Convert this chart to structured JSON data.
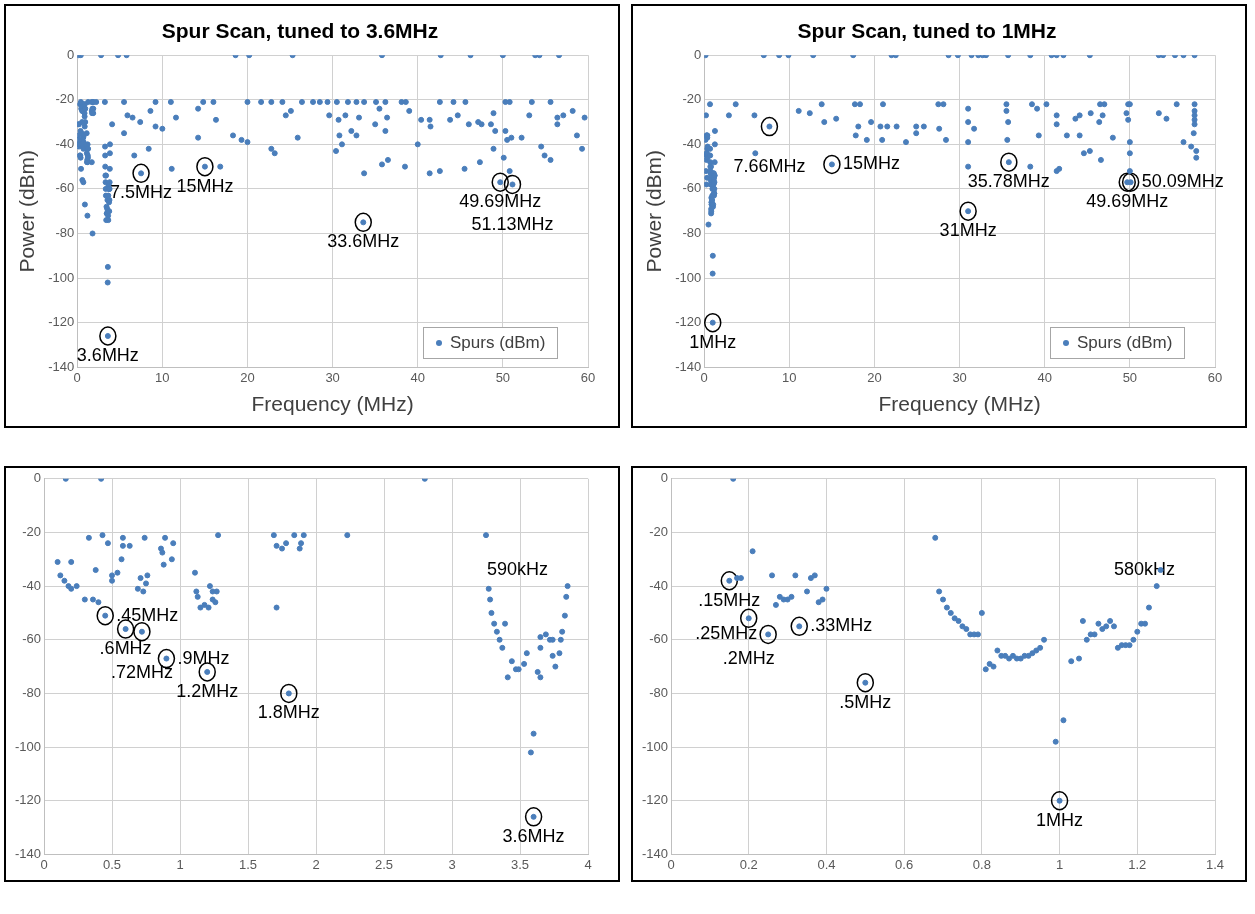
{
  "chart_data": [
    {
      "type": "scatter",
      "title": "Spur Scan, tuned to 3.6MHz",
      "xlabel": "Frequency (MHz)",
      "ylabel": "Power (dBm)",
      "xlim": [
        0,
        60
      ],
      "ylim": [
        -140,
        0
      ],
      "xticks": [
        0,
        10,
        20,
        30,
        40,
        50,
        60
      ],
      "yticks": [
        -140,
        -120,
        -100,
        -80,
        -60,
        -40,
        -20,
        0
      ],
      "grid": true,
      "legend": "bottom right",
      "marker": "circle",
      "series": [
        {
          "name": "Spurs (dBm)",
          "color": "#4a7ebb",
          "x": [
            4.8,
            5.8,
            18.6,
            20.2,
            25.3,
            35.8,
            42.7,
            46.2,
            50,
            53.8,
            54.3,
            56.6,
            5.5,
            9.2,
            11,
            14.8,
            16,
            20,
            21.6,
            22.8,
            24.1,
            26.4,
            27.7,
            28.5,
            29.4,
            30.5,
            31.8,
            32.8,
            33.7,
            35.1,
            36.2,
            38.1,
            38.6,
            42.6,
            44.2,
            45.6,
            50.3,
            50.8,
            53.4,
            55.6,
            5.9,
            6.5,
            7.4,
            8.6,
            9.2,
            10,
            11.6,
            5.5,
            4.1,
            14.2,
            14.2,
            16.3,
            18.3,
            19.3,
            20,
            22.8,
            23.2,
            24.5,
            25.1,
            25.9,
            29.6,
            30.7,
            31.5,
            30.8,
            31.1,
            30.4,
            32.2,
            32.8,
            33.1,
            35,
            35.5,
            36.2,
            36.4,
            39,
            40,
            40.4,
            41.4,
            41.5,
            43.8,
            44.7,
            46,
            47.1,
            47.5,
            48.6,
            48.9,
            49.1,
            48.9,
            50.3,
            50.5,
            51,
            52.2,
            53.1,
            54.5,
            54.9,
            55.6,
            56.4,
            56.4,
            57.1,
            58.2,
            58.7,
            59.3,
            59.6,
            36.5,
            35.8,
            38.5,
            33.7,
            41.4,
            42.6,
            45.5,
            47.3,
            50.1,
            50.8,
            49.69,
            51.13,
            8.4,
            6.7,
            7.5,
            11.1,
            15,
            16.8,
            33.6,
            0.16,
            0.42,
            2.8,
            0.33,
            0.43,
            0.47,
            0.58,
            0.63,
            0.57,
            0.74,
            0.89,
            0.86,
            0.87,
            0.95,
            0.94,
            0.88,
            1.28,
            0.1,
            0.2,
            0.38,
            0.12,
            0.15,
            0.18,
            0.2,
            0.24,
            0.3,
            0.36,
            0.4,
            0.45,
            0.5,
            0.54,
            0.6,
            0.72,
            0.69,
            0.73,
            0.71,
            0.76,
            0.75,
            0.9,
            1.11,
            1.12,
            1.13,
            1.15,
            1.18,
            1.21,
            1.22,
            1.24,
            1.27,
            1.24,
            1.26,
            1.2,
            1.69,
            1.71,
            1.75,
            1.78,
            1.84,
            1.91,
            1.89,
            1.88,
            1.71,
            1.8,
            2.23,
            3.25,
            3.27,
            3.28,
            3.29,
            3.31,
            3.33,
            3.35,
            3.37,
            3.39,
            3.44,
            3.41,
            3.47,
            3.49,
            3.53,
            3.55,
            3.63,
            3.65,
            3.65,
            3.65,
            3.69,
            3.72,
            3.74,
            3.74,
            3.76,
            3.79,
            3.8,
            3.81,
            3.83,
            3.84,
            3.85,
            3.6,
            3.58,
            3.6
          ],
          "values": [
            0,
            0,
            0,
            0,
            0,
            0,
            0,
            0,
            0,
            0,
            0,
            0,
            -21,
            -21,
            -21,
            -21,
            -21,
            -21,
            -21,
            -21,
            -21,
            -21,
            -21,
            -21,
            -21,
            -21,
            -21,
            -21,
            -21,
            -21,
            -21,
            -21,
            -21,
            -21,
            -21,
            -21,
            -21,
            -21,
            -21,
            -21,
            -27,
            -28,
            -30,
            -25,
            -32,
            -33,
            -28,
            -35,
            -31,
            -24,
            -37,
            -29,
            -36,
            -38,
            -39,
            -42,
            -44,
            -27,
            -25,
            -37,
            -27,
            -29,
            -27,
            -36,
            -40,
            -43,
            -34,
            -36,
            -28,
            -31,
            -24,
            -34,
            -28,
            -25,
            -40,
            -29,
            -29,
            -32,
            -29,
            -27,
            -31,
            -30,
            -31,
            -31,
            -26,
            -34,
            -42,
            -34,
            -38,
            -37,
            -37,
            -27,
            -41,
            -45,
            -47,
            -28,
            -31,
            -27,
            -25,
            -36,
            -42,
            -28,
            -47,
            -49,
            -50,
            -53,
            -53,
            -52,
            -51,
            -48,
            -46,
            -52,
            -57,
            -58,
            -42,
            -45,
            -53,
            -51,
            -50,
            -50,
            -75,
            0,
            0,
            0,
            -22,
            -21,
            -24,
            -25,
            -25,
            -30,
            -22,
            -22,
            -26,
            -27.5,
            -24,
            -30,
            -32,
            -21,
            -31,
            -31,
            -34,
            -36,
            -38,
            -40,
            -41,
            -40,
            -45,
            -45,
            -46,
            -51,
            -38,
            -35,
            -56,
            -57,
            -41,
            -42,
            -37,
            -36,
            -39,
            -67,
            -35,
            -42,
            -44,
            -48,
            -47,
            -48,
            -40,
            -42,
            -42,
            -45,
            -46,
            -72,
            -21,
            -25,
            -26,
            -24,
            -21,
            -21,
            -24,
            -26,
            -48,
            -80,
            -21,
            -21,
            -41,
            -45,
            -50,
            -54,
            -57,
            -60,
            -63,
            -54,
            -68,
            -74,
            -71,
            -71,
            -69,
            -65,
            -72,
            -74,
            -63,
            -59,
            -58,
            -60,
            -60,
            -66,
            -70,
            -65,
            -60,
            -57,
            -51,
            -44,
            -40,
            -95,
            -102,
            -126
          ]
        }
      ],
      "annotations": [
        {
          "text": "7.5MHz",
          "x": 7.5,
          "y": -53
        },
        {
          "text": "15MHz",
          "x": 15,
          "y": -50
        },
        {
          "text": "33.6MHz",
          "x": 33.6,
          "y": -75
        },
        {
          "text": "49.69MHz",
          "x": 49.69,
          "y": -57
        },
        {
          "text": "51.13MHz",
          "x": 51.13,
          "y": -58
        },
        {
          "text": "3.6MHz",
          "x": 3.6,
          "y": -126
        }
      ]
    },
    {
      "type": "scatter",
      "title": "Spur Scan, tuned to 1MHz",
      "xlabel": "Frequency (MHz)",
      "ylabel": "Power (dBm)",
      "xlim": [
        0,
        60
      ],
      "ylim": [
        -140,
        0
      ],
      "xticks": [
        0,
        10,
        20,
        30,
        40,
        50,
        60
      ],
      "yticks": [
        -140,
        -120,
        -100,
        -80,
        -60,
        -40,
        -20,
        0
      ],
      "grid": true,
      "legend": "bottom right",
      "marker": "circle",
      "series": [
        {
          "name": "Spurs (dBm)",
          "color": "#4a7ebb",
          "x": [
            7,
            8.8,
            9.9,
            12.8,
            17.5,
            22,
            22.5,
            28.7,
            29.8,
            31.4,
            32.2,
            32.7,
            33.1,
            35.7,
            38.3,
            40.8,
            41.4,
            42.2,
            45.3,
            53.4,
            53.9,
            55.3,
            56.3,
            57.6,
            3.7,
            13.8,
            17.7,
            18.3,
            21,
            27.5,
            28.1,
            35.5,
            38.5,
            40.2,
            46.5,
            47,
            49.8,
            50,
            55.5,
            57.6,
            2.9,
            5.9,
            7.66,
            11.1,
            12.4,
            14.1,
            15.5,
            17.8,
            18.1,
            19.1,
            19.6,
            20.7,
            21.5,
            20.9,
            22.6,
            23.7,
            24.9,
            24.9,
            25.8,
            27.6,
            28.4,
            31,
            31,
            31.7,
            31,
            35.5,
            35.7,
            35.6,
            39.1,
            39.3,
            41.4,
            41.4,
            42.6,
            43.6,
            44.1,
            44.1,
            45.4,
            46.4,
            46.8,
            48,
            44.6,
            45.3,
            46.6,
            49.6,
            49.8,
            50,
            50,
            50,
            53.4,
            54.3,
            56.3,
            57.2,
            57.5,
            57.8,
            57.8,
            31,
            35.78,
            38.3,
            41.4,
            41.7,
            31,
            15,
            6,
            49.69,
            50.09,
            57.6,
            57.6,
            57.6,
            57.6,
            0.16,
            0.68,
            0.21,
            0.15,
            0.2,
            0.25,
            0.26,
            0.27,
            0.28,
            0.29,
            0.3,
            0.31,
            0.32,
            0.33,
            0.35,
            0.36,
            0.37,
            0.38,
            0.4,
            0.5,
            0.69,
            0.7,
            0.71,
            0.72,
            0.73,
            0.74,
            0.75,
            0.76,
            0.77,
            0.78,
            0.79,
            0.8,
            0.81,
            0.82,
            0.83,
            0.84,
            0.85,
            0.87,
            0.88,
            0.89,
            0.9,
            0.93,
            0.95,
            0.96,
            0.99,
            1,
            1.01,
            1.03,
            1.05,
            1.06,
            1.08,
            1.09,
            1.11,
            1.12,
            1.13,
            1.14,
            1.15,
            1.16,
            1.17,
            1.18,
            1.19,
            1.2,
            1.21,
            1.22,
            1.23,
            1.25,
            1.26
          ],
          "values": [
            0,
            0,
            0,
            0,
            0,
            0,
            0,
            0,
            0,
            0,
            0,
            0,
            0,
            0,
            0,
            0,
            0,
            0,
            0,
            0,
            0,
            0,
            0,
            0,
            -22,
            -22,
            -22,
            -22,
            -22,
            -22,
            -22,
            -22,
            -22,
            -22,
            -22,
            -22,
            -22,
            -22,
            -22,
            -22,
            -27,
            -27,
            -32,
            -25,
            -26,
            -30,
            -28.5,
            -36,
            -32,
            -38,
            -30,
            -32,
            -32,
            -38,
            -32,
            -39,
            -32,
            -35,
            -32,
            -33,
            -38,
            -24,
            -30,
            -33,
            -39,
            -25,
            -30,
            -38,
            -24,
            -36,
            -27,
            -31,
            -36,
            -28.5,
            -27,
            -36,
            -26,
            -30,
            -27,
            -37,
            -44,
            -43,
            -47,
            -26,
            -29,
            -39,
            -44,
            -52,
            -26,
            -28.5,
            -39,
            -41,
            -35,
            -43,
            -46,
            -50,
            -48,
            -50,
            -52,
            -51,
            -70,
            -49,
            -44,
            -57,
            -57,
            -25,
            -27,
            -29,
            -31,
            0,
            -22,
            -27,
            -38,
            -52,
            -58,
            -36,
            -47,
            -44,
            -45,
            -45,
            -44,
            -36,
            -55,
            -42,
            -37,
            -36,
            -46,
            -41,
            -76,
            -42,
            -45,
            -48,
            -50,
            -52,
            -53,
            -55,
            -56,
            -58,
            -58,
            -58,
            -50,
            -71,
            -69,
            -70,
            -64,
            -66,
            -67,
            -66,
            -67,
            -67,
            -65,
            -63,
            -60,
            -98,
            -120,
            -90,
            -68,
            -67,
            -53,
            -58,
            -58,
            -56,
            -55,
            -53,
            -55,
            -63,
            -62,
            -62,
            -62,
            -60,
            -57,
            -54,
            -54,
            -48,
            -40,
            -34
          ]
        }
      ],
      "annotations": [
        {
          "text": "7.66MHz",
          "x": 7.66,
          "y": -32
        },
        {
          "text": "15MHz",
          "x": 15,
          "y": -49
        },
        {
          "text": "35.78MHz",
          "x": 35.78,
          "y": -48
        },
        {
          "text": "31MHz",
          "x": 31,
          "y": -70
        },
        {
          "text": "49.69MHz",
          "x": 49.69,
          "y": -57
        },
        {
          "text": "50.09MHz",
          "x": 50.09,
          "y": -57
        },
        {
          "text": "1MHz",
          "x": 1,
          "y": -120
        }
      ]
    },
    {
      "type": "scatter",
      "xlim": [
        0,
        4
      ],
      "ylim": [
        -140,
        0
      ],
      "xticks": [
        0,
        0.5,
        1,
        1.5,
        2,
        2.5,
        3,
        3.5,
        4
      ],
      "yticks": [
        -140,
        -120,
        -100,
        -80,
        -60,
        -40,
        -20,
        0
      ],
      "grid": true,
      "marker": "circle",
      "series": [
        {
          "color": "#4a7ebb",
          "x": [
            0.16,
            0.42,
            2.8,
            0.33,
            0.43,
            0.47,
            0.58,
            0.58,
            0.63,
            0.57,
            0.74,
            0.89,
            0.86,
            0.87,
            0.95,
            0.94,
            0.88,
            1.28,
            0.1,
            0.2,
            0.38,
            0.12,
            0.15,
            0.18,
            0.2,
            0.24,
            0.3,
            0.36,
            0.4,
            0.45,
            0.5,
            0.5,
            0.54,
            0.6,
            0.72,
            0.69,
            0.73,
            0.71,
            0.76,
            0.75,
            0.9,
            1.11,
            1.12,
            1.13,
            1.15,
            1.18,
            1.21,
            1.22,
            1.24,
            1.27,
            1.24,
            1.26,
            1.2,
            1.69,
            1.71,
            1.75,
            1.78,
            1.84,
            1.91,
            1.89,
            1.88,
            1.71,
            1.8,
            2.23,
            3.25,
            3.27,
            3.28,
            3.29,
            3.31,
            3.33,
            3.35,
            3.37,
            3.39,
            3.44,
            3.41,
            3.47,
            3.49,
            3.53,
            3.55,
            3.63,
            3.65,
            3.65,
            3.65,
            3.69,
            3.72,
            3.74,
            3.74,
            3.76,
            3.79,
            3.8,
            3.81,
            3.83,
            3.84,
            3.85,
            3.6,
            3.58,
            3.6
          ],
          "values": [
            0,
            0,
            0,
            -22,
            -21,
            -24,
            -22,
            -25,
            -25,
            -30,
            -22,
            -22,
            -26,
            -27.5,
            -24,
            -30,
            -32,
            -21,
            -31,
            -31,
            -34,
            -36,
            -38,
            -40,
            -41,
            -40,
            -45,
            -45,
            -46,
            -51,
            -38,
            -36,
            -35,
            -56,
            -57,
            -41,
            -42,
            -37,
            -36,
            -39,
            -67,
            -35,
            -42,
            -44,
            -48,
            -47,
            -48,
            -40,
            -42,
            -42,
            -45,
            -46,
            -72,
            -21,
            -25,
            -26,
            -24,
            -21,
            -21,
            -24,
            -26,
            -48,
            -80,
            -21,
            -21,
            -41,
            -45,
            -50,
            -54,
            -57,
            -60,
            -63,
            -54,
            -68,
            -74,
            -71,
            -71,
            -69,
            -65,
            -72,
            -74,
            -63,
            -59,
            -58,
            -60,
            -60,
            -66,
            -70,
            -65,
            -60,
            -57,
            -51,
            -44,
            -40,
            -95,
            -102,
            -126
          ]
        }
      ],
      "annotations": [
        {
          "text": ".45MHz",
          "x": 0.45,
          "y": -51
        },
        {
          "text": ".6MHz",
          "x": 0.6,
          "y": -56
        },
        {
          "text": ".72MHz",
          "x": 0.72,
          "y": -57
        },
        {
          "text": ".9MHz",
          "x": 0.9,
          "y": -67
        },
        {
          "text": "1.2MHz",
          "x": 1.2,
          "y": -72
        },
        {
          "text": "1.8MHz",
          "x": 1.8,
          "y": -80
        },
        {
          "text": "3.6MHz",
          "x": 3.6,
          "y": -126
        },
        "590kHz"
      ]
    },
    {
      "type": "scatter",
      "xlim": [
        0,
        1.4
      ],
      "ylim": [
        -140,
        0
      ],
      "xticks": [
        0,
        0.2,
        0.4,
        0.6,
        0.8,
        1,
        1.2,
        1.4
      ],
      "yticks": [
        -140,
        -120,
        -100,
        -80,
        -60,
        -40,
        -20,
        0
      ],
      "grid": true,
      "marker": "circle",
      "series": [
        {
          "color": "#4a7ebb",
          "x": [
            0.16,
            0.68,
            0.21,
            0.15,
            0.17,
            0.18,
            0.2,
            0.25,
            0.26,
            0.27,
            0.28,
            0.29,
            0.3,
            0.31,
            0.32,
            0.33,
            0.35,
            0.36,
            0.37,
            0.38,
            0.39,
            0.4,
            0.5,
            0.69,
            0.7,
            0.71,
            0.72,
            0.73,
            0.74,
            0.75,
            0.76,
            0.77,
            0.78,
            0.79,
            0.8,
            0.81,
            0.82,
            0.83,
            0.84,
            0.85,
            0.86,
            0.87,
            0.88,
            0.89,
            0.9,
            0.91,
            0.92,
            0.93,
            0.94,
            0.95,
            0.96,
            0.99,
            1,
            1.01,
            1.03,
            1.05,
            1.06,
            1.07,
            1.08,
            1.09,
            1.1,
            1.11,
            1.12,
            1.13,
            1.14,
            1.15,
            1.16,
            1.17,
            1.18,
            1.19,
            1.2,
            1.21,
            1.22,
            1.23,
            1.25,
            1.26
          ],
          "values": [
            0,
            -22,
            -27,
            -38,
            -37,
            -37,
            -52,
            -58,
            -36,
            -47,
            -44,
            -45,
            -45,
            -44,
            -36,
            -55,
            -42,
            -37,
            -36,
            -46,
            -45,
            -41,
            -76,
            -42,
            -45,
            -48,
            -50,
            -52,
            -53,
            -55,
            -56,
            -58,
            -58,
            -58,
            -50,
            -71,
            -69,
            -70,
            -64,
            -66,
            -66,
            -67,
            -66,
            -67,
            -67,
            -66,
            -66,
            -65,
            -64,
            -63,
            -60,
            -98,
            -120,
            -90,
            -68,
            -67,
            -53,
            -60,
            -58,
            -58,
            -54,
            -56,
            -55,
            -53,
            -55,
            -63,
            -62,
            -62,
            -62,
            -60,
            -57,
            -54,
            -54,
            -48,
            -40,
            -34
          ]
        }
      ],
      "annotations": [
        {
          "text": ".15MHz",
          "x": 0.15,
          "y": -38
        },
        {
          "text": ".2MHz",
          "x": 0.2,
          "y": -52
        },
        {
          "text": ".25MHz",
          "x": 0.25,
          "y": -58
        },
        {
          "text": ".33MHz",
          "x": 0.33,
          "y": -55
        },
        {
          "text": ".5MHz",
          "x": 0.5,
          "y": -76
        },
        {
          "text": "1MHz",
          "x": 1,
          "y": -120
        },
        "580kHz"
      ]
    }
  ]
}
